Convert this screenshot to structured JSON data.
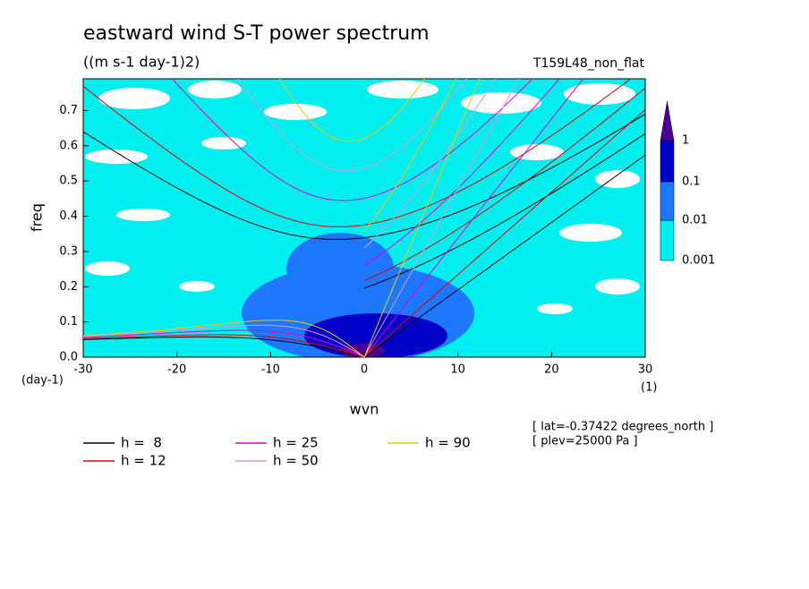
{
  "chart_data": {
    "type": "dispersion",
    "title": "eastward wind S-T power spectrum",
    "subtitle": "((m s-1 day-1)2)",
    "run_label": "T159L48_non_flat",
    "x_label": "wvn",
    "y_label": "freq",
    "y_unit": "(day-1)",
    "x_unit": "(1)",
    "xlim": [
      -30,
      30
    ],
    "xticks": [
      -30,
      -20,
      -10,
      0,
      10,
      20,
      30
    ],
    "ylim": [
      0,
      0.79
    ],
    "yticks": [
      {
        "value": 0,
        "label": "0.0"
      },
      0.1,
      0.2,
      0.3,
      0.4,
      0.5,
      0.6,
      0.7
    ],
    "colorbar": {
      "levels": [
        0.001,
        0.01,
        0.1,
        1
      ],
      "colors": [
        "#00f0f0",
        "#1e78ff",
        "#0000c8",
        "#4b0096"
      ]
    },
    "series": [
      {
        "name": "h =  8",
        "h": 8,
        "color": "#000000"
      },
      {
        "name": "h = 12",
        "h": 12,
        "color": "#e00000"
      },
      {
        "name": "h = 25",
        "h": 25,
        "color": "#e000c8"
      },
      {
        "name": "h = 50",
        "h": 50,
        "color": "#dc96dc"
      },
      {
        "name": "h = 90",
        "h": 90,
        "color": "#f0c800"
      }
    ],
    "annotations": [
      "[ lat=-0.37422 degrees_north ]",
      "[ plev=25000 Pa ]"
    ]
  }
}
